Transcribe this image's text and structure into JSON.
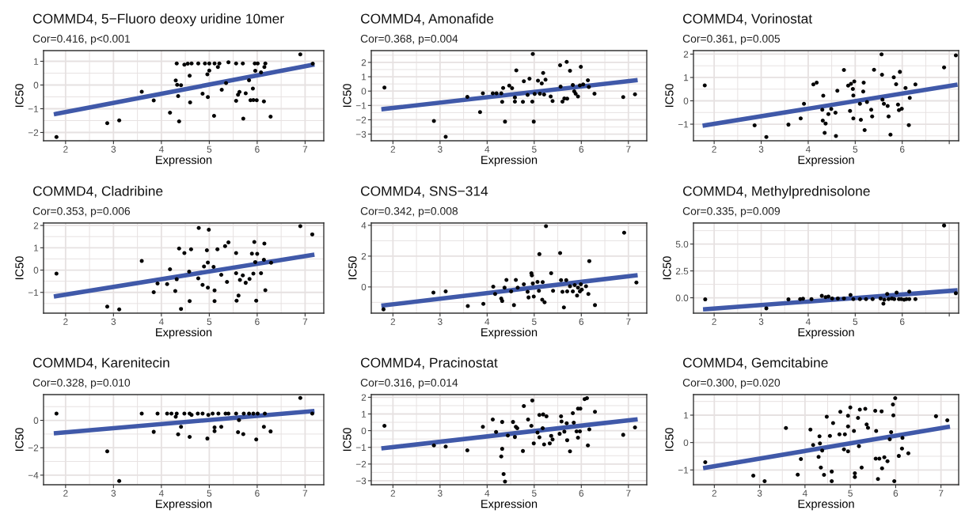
{
  "chart_data": [
    {
      "type": "scatter",
      "title": "COMMD4, 5−Fluoro deoxy uridine 10mer",
      "subtitle": "Cor=0.416, p<0.001",
      "xlabel": "Expression",
      "ylabel": "IC50",
      "grid": true,
      "xlim": [
        1.54,
        7.39
      ],
      "xticks": [
        2,
        3,
        4,
        5,
        6,
        7
      ],
      "ylim": [
        -2.35,
        1.45
      ],
      "yticks": [
        {
          "value": -2,
          "label": "−2"
        },
        {
          "value": -1,
          "label": "−1"
        },
        0,
        1
      ],
      "series": [
        {
          "type": "scatter",
          "color": "#000000",
          "x": [
            1.81,
            2.87,
            3.12,
            3.59,
            3.84,
            4.18,
            4.3,
            4.32,
            4.33,
            4.35,
            4.37,
            4.41,
            4.48,
            4.55,
            4.59,
            4.6,
            4.63,
            4.77,
            4.86,
            4.91,
            4.96,
            4.97,
            5.0,
            5.0,
            5.1,
            5.11,
            5.18,
            5.21,
            5.26,
            5.35,
            5.37,
            5.4,
            5.56,
            5.56,
            5.6,
            5.63,
            5.7,
            5.71,
            5.76,
            5.83,
            5.86,
            5.91,
            5.92,
            5.95,
            5.96,
            5.99,
            6.01,
            6.08,
            6.14,
            6.15,
            6.17,
            6.28,
            6.9,
            7.16
          ],
          "values": [
            -2.19,
            -1.61,
            -1.49,
            -0.28,
            -0.65,
            -1.17,
            0.19,
            0.91,
            0.01,
            -0.47,
            -1.53,
            -0.01,
            0.86,
            0.9,
            0.39,
            -0.73,
            0.91,
            0.91,
            -0.37,
            0.91,
            0.45,
            -0.51,
            0.61,
            0.91,
            -1.3,
            0.91,
            0.76,
            0.91,
            -0.2,
            0.08,
            null,
            0.96,
            0.91,
            -0.67,
            -0.41,
            -0.29,
            0.91,
            -1.42,
            -0.35,
            0.2,
            -0.64,
            -0.15,
            -0.63,
            0.91,
            0.6,
            -0.64,
            0.91,
            0.53,
            -0.69,
            0.76,
            0.91,
            -1.33,
            1.29,
            0.9
          ]
        },
        {
          "type": "line",
          "color": "#4059a9",
          "x": [
            1.8,
            7.15
          ],
          "values": [
            -1.22,
            0.85
          ]
        }
      ]
    },
    {
      "type": "scatter",
      "title": "COMMD4, Amonafide",
      "subtitle": "Cor=0.368, p=0.004",
      "xlabel": "Expression",
      "ylabel": "IC50",
      "grid": true,
      "xlim": [
        1.54,
        7.39
      ],
      "xticks": [
        2,
        3,
        4,
        5,
        6,
        7
      ],
      "ylim": [
        -3.46,
        2.82
      ],
      "yticks": [
        {
          "value": -3,
          "label": "−3"
        },
        {
          "value": -2,
          "label": "−2"
        },
        {
          "value": -1,
          "label": "−1"
        },
        0,
        1,
        2
      ],
      "series": [
        {
          "type": "scatter",
          "color": "#000000",
          "x": [
            1.82,
            2.87,
            3.12,
            3.58,
            3.85,
            3.91,
            4.12,
            4.2,
            4.3,
            4.34,
            4.32,
            4.38,
            4.47,
            4.53,
            4.59,
            4.62,
            4.59,
            4.76,
            4.78,
            4.86,
            4.9,
            4.96,
            4.97,
            4.99,
            5.01,
            5.08,
            5.12,
            5.16,
            5.19,
            5.21,
            5.24,
            5.35,
            5.39,
            5.55,
            5.56,
            5.6,
            5.64,
            5.69,
            5.7,
            5.76,
            5.82,
            5.85,
            5.88,
            5.93,
            5.99,
            5.97,
            6.04,
            6.14,
            6.16,
            6.28,
            6.89,
            7.14
          ],
          "values": [
            0.24,
            -2.08,
            -3.19,
            -0.4,
            -1.46,
            -0.16,
            -0.16,
            -0.16,
            -0.16,
            0.22,
            -0.75,
            -2.13,
            0.38,
            0.2,
            -0.44,
            1.44,
            -0.73,
            -0.75,
            0.69,
            -0.27,
            0.86,
            -0.73,
            2.59,
            -2.13,
            -0.2,
            0.73,
            -0.18,
            0.53,
            1.26,
            -0.24,
            0.8,
            -0.38,
            -0.69,
            1.8,
            0.31,
            -0.73,
            -0.51,
            2.04,
            -0.53,
            1.42,
            0.42,
            -0.02,
            -0.18,
            -0.38,
            1.69,
            0.4,
            0.47,
            0.75,
            0.29,
            -0.18,
            -0.42,
            -0.22
          ]
        },
        {
          "type": "line",
          "color": "#4059a9",
          "x": [
            1.8,
            7.15
          ],
          "values": [
            -1.25,
            0.75
          ]
        }
      ]
    },
    {
      "type": "scatter",
      "title": "COMMD4, Vorinostat",
      "subtitle": "Cor=0.361, p=0.005",
      "xlabel": "Expression",
      "ylabel": "IC50",
      "grid": true,
      "xlim": [
        1.56,
        7.2
      ],
      "xticks": [
        2,
        3,
        4,
        5,
        6,
        {
          "value": 7,
          "label": null
        }
      ],
      "ylim": [
        -1.71,
        2.15
      ],
      "yticks": [
        {
          "value": -1,
          "label": "−1"
        },
        0,
        1,
        2
      ],
      "series": [
        {
          "type": "scatter",
          "color": "#000000",
          "x": [
            1.8,
            2.86,
            3.11,
            3.58,
            3.84,
            3.91,
            4.11,
            4.18,
            4.3,
            4.32,
            4.31,
            4.37,
            4.35,
            4.43,
            4.49,
            4.58,
            4.59,
            4.62,
            4.76,
            4.85,
            4.89,
            4.91,
            4.95,
            4.96,
            4.98,
            4.96,
            5.1,
            5.12,
            5.17,
            5.18,
            5.2,
            5.25,
            5.34,
            5.36,
            5.4,
            5.56,
            5.57,
            5.58,
            5.61,
            5.69,
            5.71,
            5.75,
            5.82,
            5.87,
            5.91,
            5.93,
            5.95,
            5.99,
            6.07,
            6.14,
            6.16,
            6.28,
            6.89,
            7.14
          ],
          "values": [
            0.66,
            -1.05,
            -1.55,
            -1.02,
            -0.75,
            -0.13,
            0.7,
            0.78,
            -0.38,
            0.22,
            -0.85,
            -0.97,
            -1.37,
            -0.57,
            -0.35,
            -0.51,
            -1.51,
            0.43,
            1.32,
            0.65,
            -0.43,
            0.73,
            0.51,
            -0.75,
            0.83,
            0.23,
            -0.13,
            -0.81,
            0.4,
            0.78,
            -1.25,
            -0.05,
            -0.38,
            -0.67,
            1.33,
            1.99,
            1.12,
            0.05,
            -0.13,
            -0.22,
            -0.67,
            -1.45,
            1.01,
            0.71,
            -0.16,
            -0.4,
            1.24,
            -0.34,
            0.55,
            -1.04,
            0.13,
            0.7,
            1.43,
            1.95
          ]
        },
        {
          "type": "line",
          "color": "#4059a9",
          "x": [
            1.8,
            7.13
          ],
          "values": [
            -1.05,
            0.68
          ]
        }
      ]
    },
    {
      "type": "scatter",
      "title": "COMMD4, Cladribine",
      "subtitle": "Cor=0.353, p=0.006",
      "xlabel": "Expression",
      "ylabel": "IC50",
      "grid": true,
      "xlim": [
        1.54,
        7.39
      ],
      "xticks": [
        2,
        3,
        4,
        5,
        6,
        7
      ],
      "ylim": [
        -1.93,
        2.11
      ],
      "yticks": [
        {
          "value": -1,
          "label": "−1"
        },
        0,
        1,
        2
      ],
      "series": [
        {
          "type": "scatter",
          "color": "#000000",
          "x": [
            1.81,
            2.87,
            3.12,
            3.59,
            3.84,
            3.92,
            4.12,
            4.18,
            4.29,
            4.32,
            4.37,
            4.41,
            4.48,
            4.58,
            4.59,
            4.62,
            4.77,
            4.78,
            4.86,
            4.89,
            4.95,
            4.97,
            4.97,
            4.99,
            5.09,
            5.11,
            5.11,
            5.17,
            5.25,
            5.33,
            5.37,
            5.4,
            5.56,
            5.56,
            5.57,
            5.61,
            5.64,
            5.7,
            5.76,
            5.84,
            5.89,
            5.92,
            5.94,
            5.96,
            5.98,
            6.0,
            6.08,
            6.14,
            6.15,
            6.17,
            6.29,
            6.9,
            7.15
          ],
          "values": [
            -0.16,
            -1.64,
            -1.76,
            0.41,
            -0.99,
            -0.6,
            -0.63,
            0.04,
            -0.94,
            -0.41,
            0.97,
            -1.74,
            0.76,
            -0.07,
            -1.39,
            0.93,
            -0.37,
            1.89,
            -0.66,
            0.16,
            0.89,
            0.34,
            -0.79,
            1.81,
            0.14,
            -0.91,
            -1.39,
            0.93,
            -0.21,
            1.07,
            -0.53,
            1.24,
            -0.14,
            0.76,
            -1.37,
            -1.14,
            -0.44,
            -0.24,
            -0.57,
            -0.4,
            0.74,
            -0.16,
            1.26,
            0.36,
            -1.37,
            0.73,
            -0.14,
            0.46,
            1.19,
            -0.9,
            0.33,
            1.97,
            1.6
          ]
        },
        {
          "type": "line",
          "color": "#4059a9",
          "x": [
            1.8,
            7.15
          ],
          "values": [
            -1.17,
            0.68
          ]
        }
      ]
    },
    {
      "type": "scatter",
      "title": "COMMD4, SNS−314",
      "subtitle": "Cor=0.342, p=0.008",
      "xlabel": "Expression",
      "ylabel": "IC50",
      "grid": true,
      "xlim": [
        1.54,
        7.39
      ],
      "xticks": [
        2,
        3,
        4,
        5,
        6,
        7
      ],
      "ylim": [
        -1.7,
        4.15
      ],
      "yticks": [
        0,
        2,
        4
      ],
      "series": [
        {
          "type": "scatter",
          "color": "#000000",
          "x": [
            1.8,
            2.86,
            3.12,
            3.59,
            3.92,
            4.13,
            4.17,
            4.3,
            4.32,
            4.37,
            4.41,
            4.51,
            4.57,
            4.61,
            4.65,
            4.78,
            4.86,
            4.88,
            4.94,
            4.95,
            4.97,
            4.99,
            5.07,
            5.1,
            5.11,
            5.17,
            5.18,
            5.22,
            5.25,
            5.36,
            5.4,
            5.55,
            5.57,
            5.6,
            5.63,
            5.68,
            5.7,
            5.76,
            5.82,
            5.86,
            5.91,
            5.93,
            5.97,
            5.99,
            6.01,
            6.1,
            6.15,
            6.17,
            6.29,
            6.91,
            7.17
          ],
          "values": [
            -1.45,
            -0.37,
            -0.29,
            -1.24,
            -1.1,
            0.02,
            -0.46,
            -0.75,
            -0.91,
            -0.04,
            0.46,
            -0.29,
            -1.18,
            0.46,
            -0.04,
            0.17,
            -0.31,
            -0.68,
            0.89,
            0.75,
            0.23,
            -0.62,
            0.33,
            -0.25,
            2.13,
            -0.83,
            0.31,
            -0.99,
            3.94,
            0.89,
            -0.25,
            2.2,
            0.44,
            -0.31,
            -1.33,
            0.44,
            -0.29,
            0.04,
            -0.29,
            0.12,
            -0.56,
            -0.04,
            -0.29,
            0.17,
            -0.17,
            0.04,
            -0.46,
            1.68,
            -1.18,
            3.52,
            0.29
          ]
        },
        {
          "type": "line",
          "color": "#4059a9",
          "x": [
            1.8,
            7.15
          ],
          "values": [
            -1.2,
            0.75
          ]
        }
      ]
    },
    {
      "type": "scatter",
      "title": "COMMD4, Methylprednisolone",
      "subtitle": "Cor=0.335, p=0.009",
      "xlabel": "Expression",
      "ylabel": "IC50",
      "grid": true,
      "xlim": [
        1.56,
        7.2
      ],
      "xticks": [
        2,
        3,
        4,
        5,
        6,
        {
          "value": 7,
          "label": null
        }
      ],
      "ylim": [
        -1.43,
        6.96
      ],
      "yticks": [
        {
          "value": 0,
          "label": "0.0"
        },
        {
          "value": 2.5,
          "label": "2.5"
        },
        {
          "value": 5,
          "label": "5.0"
        }
      ],
      "series": [
        {
          "type": "scatter",
          "color": "#000000",
          "x": [
            1.81,
            3.11,
            3.58,
            3.83,
            3.89,
            4.07,
            4.29,
            4.37,
            4.43,
            4.51,
            4.63,
            4.76,
            4.9,
            4.96,
            5.1,
            5.23,
            5.37,
            5.54,
            5.6,
            5.62,
            5.68,
            5.71,
            5.78,
            5.83,
            5.88,
            5.93,
            5.98,
            6.04,
            6.09,
            6.15,
            6.15,
            6.28,
            6.89,
            7.14
          ],
          "values": [
            -0.15,
            -0.98,
            -0.15,
            -0.12,
            -0.09,
            -0.12,
            0.18,
            0.06,
            0.12,
            -0.06,
            -0.06,
            -0.06,
            0.27,
            -0.12,
            -0.12,
            -0.12,
            -0.12,
            -0.06,
            -0.54,
            -0.18,
            0.36,
            -0.12,
            -0.06,
            -0.12,
            0.48,
            -0.12,
            -0.12,
            -0.18,
            -0.12,
            0.57,
            -0.12,
            -0.12,
            6.73,
            0.42
          ]
        },
        {
          "type": "line",
          "color": "#4059a9",
          "x": [
            1.81,
            7.13
          ],
          "values": [
            -1.07,
            0.68
          ]
        }
      ]
    },
    {
      "type": "scatter",
      "title": "COMMD4, Karenitecin",
      "subtitle": "Cor=0.328, p=0.010",
      "xlabel": "Expression",
      "ylabel": "IC50",
      "grid": true,
      "xlim": [
        1.54,
        7.39
      ],
      "xticks": [
        2,
        3,
        4,
        5,
        6,
        7
      ],
      "ylim": [
        -4.7,
        1.88
      ],
      "yticks": [
        {
          "value": -4,
          "label": "−4"
        },
        {
          "value": -2,
          "label": "−2"
        },
        0
      ],
      "series": [
        {
          "type": "scatter",
          "color": "#000000",
          "x": [
            1.81,
            2.87,
            3.12,
            3.59,
            3.84,
            3.92,
            4.12,
            4.21,
            4.3,
            4.32,
            4.35,
            4.41,
            4.48,
            4.59,
            4.59,
            4.63,
            4.76,
            4.86,
            4.96,
            4.98,
            5.07,
            5.11,
            5.11,
            5.19,
            5.25,
            5.34,
            5.4,
            5.56,
            5.62,
            5.6,
            5.71,
            5.72,
            5.83,
            5.92,
            5.98,
            6.01,
            6.14,
            6.16,
            6.28,
            6.9,
            7.15
          ],
          "values": [
            0.49,
            -2.26,
            -4.42,
            0.49,
            -0.84,
            0.49,
            0.49,
            0.49,
            0.26,
            0.49,
            -1.02,
            -0.47,
            0.49,
            0.49,
            -1.21,
            0.4,
            0.49,
            0.49,
            -1.33,
            0.4,
            0.49,
            -0.79,
            -0.51,
            0.49,
            -0.47,
            0.49,
            0.49,
            0.49,
            0.02,
            -0.86,
            -1.0,
            0.49,
            0.49,
            0.49,
            -1.4,
            0.49,
            -0.47,
            0.49,
            -0.81,
            1.63,
            0.49
          ]
        },
        {
          "type": "line",
          "color": "#4059a9",
          "x": [
            1.8,
            7.15
          ],
          "values": [
            -0.93,
            0.67
          ]
        }
      ]
    },
    {
      "type": "scatter",
      "title": "COMMD4, Pracinostat",
      "subtitle": "Cor=0.316, p=0.014",
      "xlabel": "Expression",
      "ylabel": "IC50",
      "grid": true,
      "xlim": [
        1.54,
        7.39
      ],
      "xticks": [
        2,
        3,
        4,
        5,
        6,
        7
      ],
      "ylim": [
        -3.24,
        2.16
      ],
      "yticks": [
        {
          "value": -3,
          "label": "−3"
        },
        {
          "value": -2,
          "label": "−2"
        },
        {
          "value": -1,
          "label": "−1"
        },
        0,
        1,
        2
      ],
      "series": [
        {
          "type": "scatter",
          "color": "#000000",
          "x": [
            1.82,
            2.87,
            3.12,
            3.58,
            3.91,
            4.12,
            4.19,
            4.32,
            4.32,
            4.3,
            4.35,
            4.38,
            4.44,
            4.55,
            4.59,
            4.61,
            4.64,
            4.76,
            4.78,
            4.87,
            4.94,
            4.96,
            4.99,
            5.07,
            5.11,
            5.11,
            5.18,
            5.19,
            5.21,
            5.26,
            5.33,
            5.36,
            5.39,
            5.54,
            5.57,
            5.58,
            5.64,
            5.69,
            5.7,
            5.76,
            5.82,
            5.84,
            5.9,
            5.93,
            5.93,
            5.98,
            5.97,
            6.07,
            6.12,
            6.14,
            6.17,
            6.29,
            6.89,
            7.14
          ],
          "values": [
            0.29,
            -0.88,
            -0.95,
            -1.18,
            0.23,
            0.67,
            -0.08,
            0.52,
            -1.09,
            -1.55,
            -2.6,
            -3.05,
            -0.29,
            0.52,
            -0.38,
            0.23,
            0.15,
            -1.22,
            1.47,
            0.67,
            0.29,
            1.81,
            -0.76,
            -0.11,
            -0.4,
            0.94,
            0.15,
            0.97,
            -0.82,
            0.86,
            -0.76,
            -0.31,
            -0.53,
            -0.19,
            0.86,
            0.55,
            -0.06,
            0.44,
            -0.57,
            -1.24,
            1.05,
            0.48,
            -0.04,
            -0.42,
            1.32,
            1.32,
            -0.04,
            1.89,
            1.95,
            -0.88,
            0.08,
            1.13,
            -0.25,
            0.19
          ]
        },
        {
          "type": "line",
          "color": "#4059a9",
          "x": [
            1.8,
            7.15
          ],
          "values": [
            -1.05,
            0.67
          ]
        }
      ]
    },
    {
      "type": "scatter",
      "title": "COMMD4, Gemcitabine",
      "subtitle": "Cor=0.300, p=0.020",
      "xlabel": "Expression",
      "ylabel": "IC50",
      "grid": true,
      "xlim": [
        1.54,
        7.39
      ],
      "xticks": [
        2,
        3,
        4,
        5,
        6,
        7
      ],
      "ylim": [
        -1.54,
        1.75
      ],
      "yticks": [
        {
          "value": -1,
          "label": "−1"
        },
        0,
        1
      ],
      "series": [
        {
          "type": "scatter",
          "color": "#000000",
          "x": [
            1.8,
            2.86,
            3.11,
            3.58,
            3.84,
            3.91,
            4.12,
            4.18,
            4.3,
            4.32,
            4.33,
            4.35,
            4.38,
            4.42,
            4.48,
            4.55,
            4.59,
            4.59,
            4.62,
            4.76,
            4.78,
            4.86,
            4.88,
            4.95,
            4.95,
            4.95,
            5.0,
            5.08,
            5.1,
            5.1,
            5.17,
            5.19,
            5.21,
            5.25,
            5.33,
            5.36,
            5.39,
            5.55,
            5.57,
            5.56,
            5.61,
            5.64,
            5.69,
            5.7,
            5.75,
            5.82,
            5.87,
            5.9,
            5.94,
            5.95,
            5.99,
            5.97,
            6.07,
            6.14,
            6.15,
            6.28,
            6.89,
            7.14
          ],
          "values": [
            -0.72,
            -1.21,
            -1.41,
            0.53,
            -1.17,
            -0.6,
            0.47,
            -0.09,
            -0.52,
            0.23,
            -0.03,
            -0.91,
            -0.29,
            -1.18,
            0.94,
            0.24,
            -1.06,
            -1.41,
            0.71,
            0.3,
            1.12,
            -0.25,
            0.3,
            -0.32,
            0.59,
            0.98,
            1.28,
            0.42,
            -1.12,
            -1.26,
            0.9,
            -0.13,
            1.2,
            -0.91,
            1.23,
            0.66,
            0.54,
            1.16,
            0.42,
            -0.59,
            -1.33,
            -0.59,
            1.14,
            -0.94,
            -0.54,
            -0.68,
            0.12,
            0.38,
            1.39,
            0.99,
            1.62,
            -1.41,
            -0.49,
            -0.22,
            0.17,
            -0.39,
            0.96,
            0.81
          ]
        },
        {
          "type": "line",
          "color": "#4059a9",
          "x": [
            1.8,
            7.15
          ],
          "values": [
            -0.92,
            0.57
          ]
        }
      ]
    }
  ]
}
